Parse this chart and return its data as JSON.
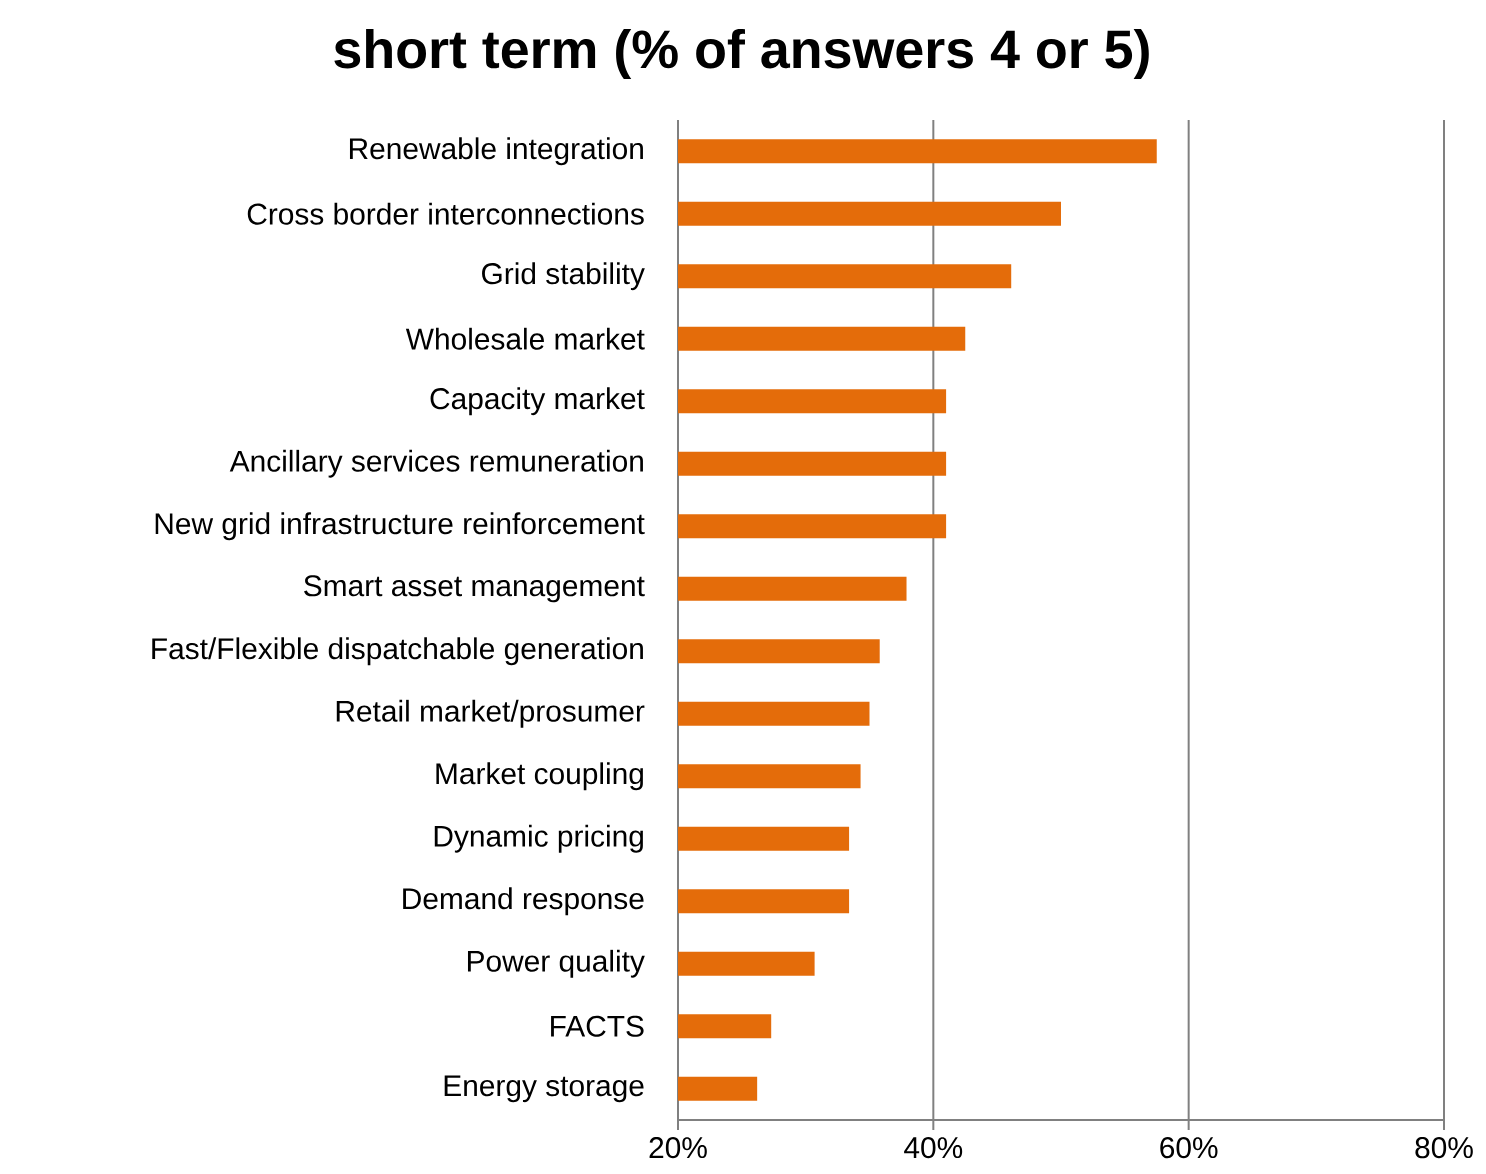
{
  "chart_data": {
    "type": "bar",
    "orientation": "horizontal",
    "title": "short term (% of answers 4 or 5)",
    "categories": [
      "Renewable integration",
      "Cross border interconnections",
      "Grid stability",
      "Wholesale market",
      "Capacity market",
      "Ancillary services remuneration",
      "New grid infrastructure reinforcement",
      "Smart asset management",
      "Fast/Flexible dispatchable generation",
      "Retail market/prosumer",
      "Market coupling",
      "Dynamic pricing",
      "Demand response",
      "Power quality",
      "FACTS",
      "Energy storage"
    ],
    "values": [
      57.5,
      50,
      46.1,
      42.5,
      41,
      41,
      41,
      37.9,
      35.8,
      35,
      34.3,
      33.4,
      33.4,
      30.7,
      27.3,
      26.2
    ],
    "color": "#e46c0a",
    "xlim": [
      20,
      80
    ],
    "xticks": [
      {
        "value": 20,
        "label": "20%"
      },
      {
        "value": 40,
        "label": "40%"
      },
      {
        "value": 60,
        "label": "60%"
      },
      {
        "value": 80,
        "label": "80%"
      }
    ],
    "grid": "x"
  }
}
